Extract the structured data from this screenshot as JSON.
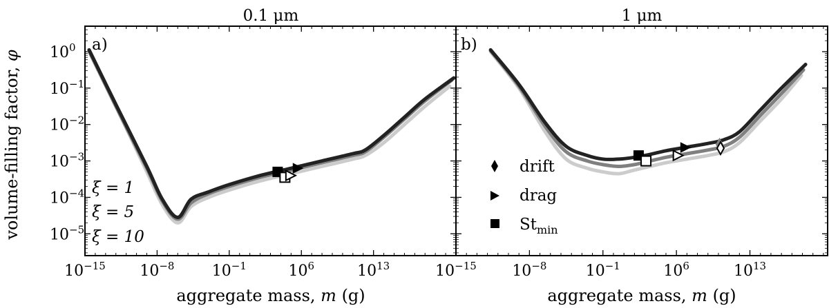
{
  "figure": {
    "ylabel_text": "volume-filling factor, ",
    "ylabel_symbol": "φ",
    "xlabel_text": "aggregate mass, ",
    "xlabel_symbol": "m",
    "xlabel_unit": " (g)"
  },
  "chart_data": [
    {
      "type": "line",
      "panel_label": "a)",
      "title": "0.1 μm",
      "xlabel": "aggregate mass, m (g)",
      "ylabel": "volume-filling factor, φ",
      "xscale": "log",
      "yscale": "log",
      "xlim_log10": [
        -15,
        21
      ],
      "ylim_log10": [
        -5.6,
        0.7
      ],
      "xticks": [
        {
          "base": "10",
          "exp": "−15"
        },
        {
          "base": "10",
          "exp": "−8"
        },
        {
          "base": "10",
          "exp": "−1"
        },
        {
          "base": "10",
          "exp": "6"
        },
        {
          "base": "10",
          "exp": "13"
        }
      ],
      "xtick_values_log10": [
        -15,
        -8,
        -1,
        6,
        13
      ],
      "yticks": [
        {
          "base": "10",
          "exp": "0"
        },
        {
          "base": "10",
          "exp": "−1"
        },
        {
          "base": "10",
          "exp": "−2"
        },
        {
          "base": "10",
          "exp": "−3"
        },
        {
          "base": "10",
          "exp": "−4"
        },
        {
          "base": "10",
          "exp": "−5"
        }
      ],
      "ytick_values_log10": [
        0,
        -1,
        -2,
        -3,
        -4,
        -5
      ],
      "series": [
        {
          "name": "ξ = 1",
          "color": "#cccccc",
          "x_log10": [
            -14.6,
            -12,
            -9,
            -7.5,
            -6,
            -4.7,
            -3,
            -1,
            2,
            5,
            8,
            11,
            12.2,
            14,
            16,
            18,
            20.4
          ],
          "y_log10": [
            0.0,
            -1.5,
            -3.3,
            -4.2,
            -4.7,
            -4.25,
            -4.0,
            -3.8,
            -3.55,
            -3.35,
            -3.15,
            -2.95,
            -2.85,
            -2.5,
            -2.0,
            -1.5,
            -0.95
          ]
        },
        {
          "name": "ξ = 5",
          "color": "#808080",
          "x_log10": [
            -14.6,
            -12,
            -9,
            -7.5,
            -6,
            -4.7,
            -3,
            -1,
            2,
            5,
            8,
            11,
            12.2,
            14,
            16,
            18,
            20.6
          ],
          "y_log10": [
            0.02,
            -1.5,
            -3.2,
            -4.1,
            -4.6,
            -4.15,
            -3.9,
            -3.7,
            -3.45,
            -3.25,
            -3.05,
            -2.85,
            -2.75,
            -2.35,
            -1.85,
            -1.35,
            -0.78
          ]
        },
        {
          "name": "ξ = 10",
          "color": "#222222",
          "x_log10": [
            -14.6,
            -12,
            -9,
            -7.5,
            -6,
            -4.7,
            -3,
            -1,
            2,
            5,
            8,
            11,
            12.2,
            14,
            16,
            18,
            20.8
          ],
          "y_log10": [
            0.05,
            -1.45,
            -3.15,
            -4.05,
            -4.55,
            -4.05,
            -3.85,
            -3.65,
            -3.4,
            -3.2,
            -3.0,
            -2.8,
            -2.7,
            -2.3,
            -1.8,
            -1.3,
            -0.72
          ]
        }
      ],
      "markers": [
        {
          "kind": "square",
          "filled": true,
          "color": "#000000",
          "x_log10": 3.7,
          "y_log10": -3.3
        },
        {
          "kind": "square",
          "filled": false,
          "color": "#000000",
          "x_log10": 4.4,
          "y_log10": -3.45
        },
        {
          "kind": "triangle-right",
          "filled": true,
          "color": "#000000",
          "x_log10": 5.6,
          "y_log10": -3.2
        },
        {
          "kind": "triangle-right",
          "filled": false,
          "color": "#000000",
          "x_log10": 4.9,
          "y_log10": -3.4
        }
      ],
      "legend": {
        "placement": "lower-left",
        "entries": [
          "ξ = 1",
          "ξ = 5",
          "ξ = 10"
        ]
      }
    },
    {
      "type": "line",
      "panel_label": "b)",
      "title": "1 μm",
      "xlabel": "aggregate mass, m (g)",
      "ylabel": "volume-filling factor, φ",
      "xscale": "log",
      "yscale": "log",
      "xlim_log10": [
        -15,
        20.4
      ],
      "ylim_log10": [
        -5.6,
        0.7
      ],
      "xticks": [
        {
          "base": "10",
          "exp": "−15"
        },
        {
          "base": "10",
          "exp": "−8"
        },
        {
          "base": "10",
          "exp": "−1"
        },
        {
          "base": "10",
          "exp": "6"
        },
        {
          "base": "10",
          "exp": "13"
        }
      ],
      "xtick_values_log10": [
        -15,
        -8,
        -1,
        6,
        13
      ],
      "series": [
        {
          "name": "ξ = 1",
          "color": "#cccccc",
          "x_log10": [
            -11.7,
            -9,
            -6.5,
            -4.5,
            -2.5,
            -1,
            0.5,
            2,
            3.5,
            5,
            7,
            9,
            10.5,
            12,
            14,
            16,
            17.9
          ],
          "y_log10": [
            0.0,
            -1.0,
            -2.2,
            -2.95,
            -3.2,
            -3.3,
            -3.35,
            -3.25,
            -3.15,
            -3.05,
            -2.95,
            -2.85,
            -2.75,
            -2.5,
            -1.9,
            -1.3,
            -0.65
          ]
        },
        {
          "name": "ξ = 5",
          "color": "#808080",
          "x_log10": [
            -11.7,
            -9,
            -6.5,
            -4.5,
            -2.5,
            -1,
            0.5,
            2,
            3.5,
            5,
            7,
            9,
            10.5,
            12,
            14,
            16,
            18.1
          ],
          "y_log10": [
            0.03,
            -0.95,
            -2.05,
            -2.75,
            -3.0,
            -3.1,
            -3.15,
            -3.1,
            -3.0,
            -2.9,
            -2.8,
            -2.7,
            -2.6,
            -2.35,
            -1.75,
            -1.15,
            -0.5
          ]
        },
        {
          "name": "ξ = 10",
          "color": "#222222",
          "x_log10": [
            -11.7,
            -9,
            -6.5,
            -4.5,
            -2.5,
            -1,
            0.5,
            2,
            3.5,
            5,
            7,
            9,
            10.5,
            12,
            14,
            16,
            18.3
          ],
          "y_log10": [
            0.05,
            -0.9,
            -1.95,
            -2.6,
            -2.85,
            -2.95,
            -2.95,
            -2.9,
            -2.82,
            -2.72,
            -2.62,
            -2.52,
            -2.42,
            -2.2,
            -1.6,
            -1.0,
            -0.35
          ]
        }
      ],
      "markers": [
        {
          "kind": "square",
          "filled": true,
          "color": "#000000",
          "x_log10": 2.4,
          "y_log10": -2.85
        },
        {
          "kind": "square",
          "filled": false,
          "color": "#000000",
          "x_log10": 3.1,
          "y_log10": -3.0
        },
        {
          "kind": "triangle-right",
          "filled": true,
          "color": "#000000",
          "x_log10": 6.8,
          "y_log10": -2.63
        },
        {
          "kind": "triangle-right",
          "filled": false,
          "color": "#000000",
          "x_log10": 6.1,
          "y_log10": -2.85
        },
        {
          "kind": "diamond",
          "filled": true,
          "color": "#808080",
          "x_log10": 10.1,
          "y_log10": -2.55
        },
        {
          "kind": "diamond",
          "filled": false,
          "color": "#000000",
          "x_log10": 10.2,
          "y_log10": -2.65
        }
      ],
      "legend": {
        "placement": "lower-left",
        "entries": [
          {
            "symbol": "diamond",
            "label": "drift"
          },
          {
            "symbol": "triangle-right",
            "label": "drag"
          },
          {
            "symbol": "square",
            "label": "St",
            "subscript": "min"
          }
        ]
      }
    }
  ]
}
